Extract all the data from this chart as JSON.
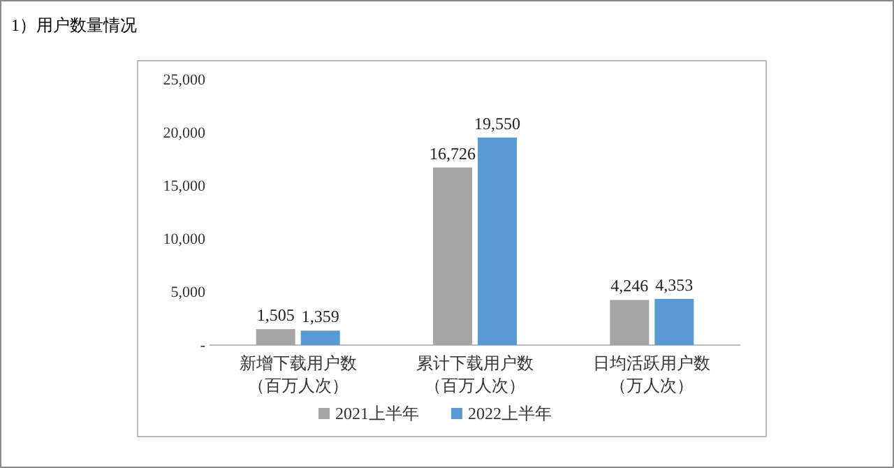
{
  "chart_data": {
    "type": "bar",
    "title": "1）用户数量情况",
    "categories": [
      "新增下载用户数（百万人次）",
      "累计下载用户数（百万人次）",
      "日均活跃用户数（万人次）"
    ],
    "series": [
      {
        "name": "2021上半年",
        "color": "#a5a5a5",
        "values": [
          1505,
          16726,
          4246
        ],
        "value_labels": [
          "1,505",
          "16,726",
          "4,246"
        ]
      },
      {
        "name": "2022上半年",
        "color": "#5b9bd5",
        "values": [
          1359,
          19550,
          4353
        ],
        "value_labels": [
          "1,359",
          "19,550",
          "4,353"
        ]
      }
    ],
    "ylim": [
      0,
      25000
    ],
    "yticks": [
      {
        "value": 0,
        "label": "-"
      },
      {
        "value": 5000,
        "label": "5,000"
      },
      {
        "value": 10000,
        "label": "10,000"
      },
      {
        "value": 15000,
        "label": "15,000"
      },
      {
        "value": 20000,
        "label": "20,000"
      },
      {
        "value": 25000,
        "label": "25,000"
      }
    ],
    "legend": "bottom",
    "grid": false
  }
}
